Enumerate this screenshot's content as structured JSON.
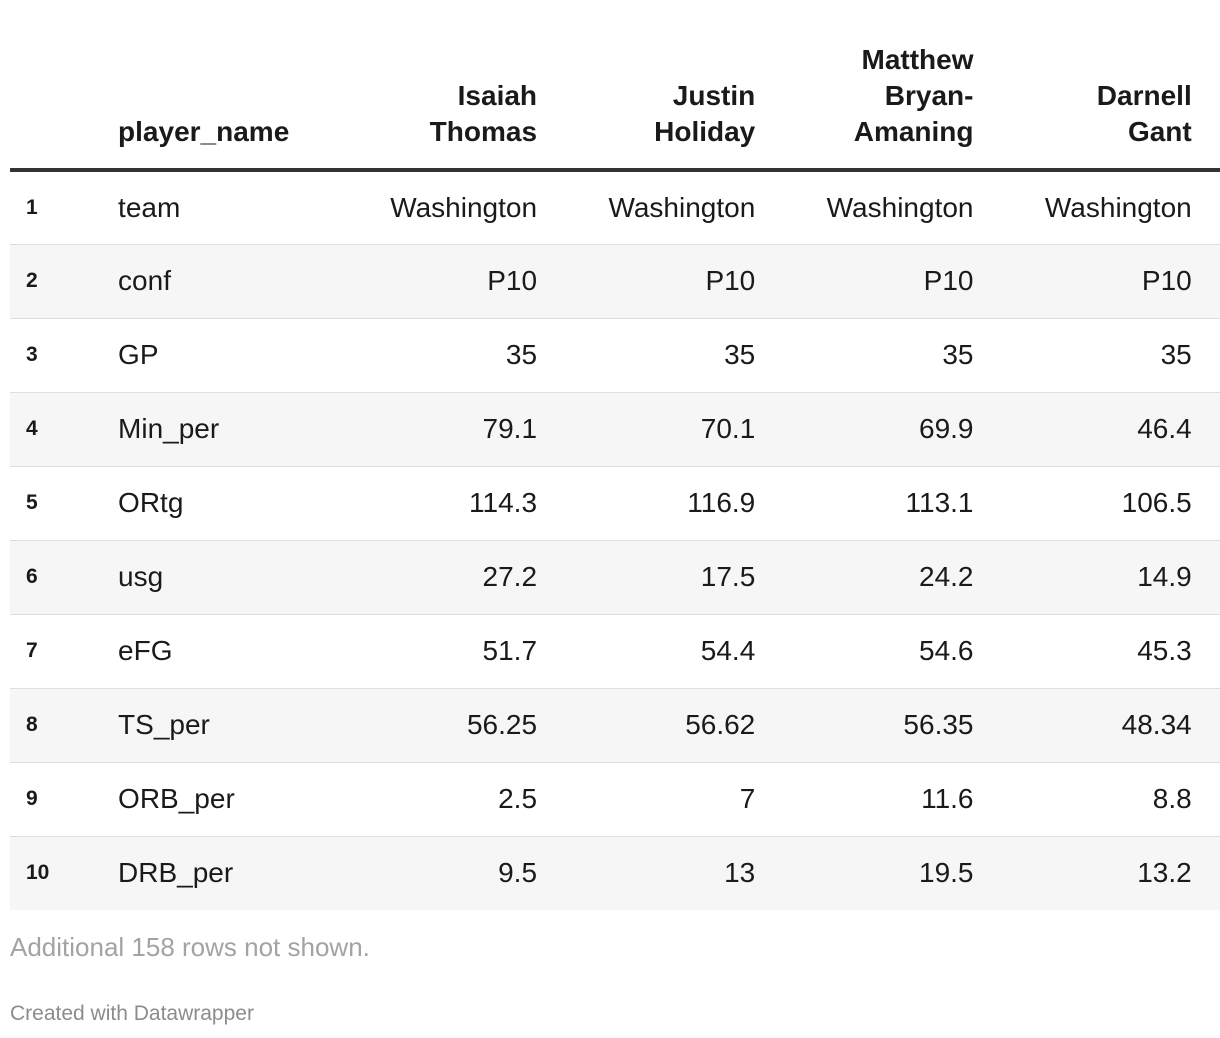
{
  "chart_data": {
    "type": "table",
    "columns": [
      "player_name",
      "Isaiah Thomas",
      "Justin Holiday",
      "Matthew Bryan-Amaning",
      "Darnell Gant",
      ""
    ],
    "rows": [
      {
        "index": "1",
        "label": "team",
        "values": [
          "Washington",
          "Washington",
          "Washington",
          "Washington",
          "W"
        ]
      },
      {
        "index": "2",
        "label": "conf",
        "values": [
          "P10",
          "P10",
          "P10",
          "P10",
          ""
        ]
      },
      {
        "index": "3",
        "label": "GP",
        "values": [
          "35",
          "35",
          "35",
          "35",
          ""
        ]
      },
      {
        "index": "4",
        "label": "Min_per",
        "values": [
          "79.1",
          "70.1",
          "69.9",
          "46.4",
          ""
        ]
      },
      {
        "index": "5",
        "label": "ORtg",
        "values": [
          "114.3",
          "116.9",
          "113.1",
          "106.5",
          ""
        ]
      },
      {
        "index": "6",
        "label": "usg",
        "values": [
          "27.2",
          "17.5",
          "24.2",
          "14.9",
          ""
        ]
      },
      {
        "index": "7",
        "label": "eFG",
        "values": [
          "51.7",
          "54.4",
          "54.6",
          "45.3",
          ""
        ]
      },
      {
        "index": "8",
        "label": "TS_per",
        "values": [
          "56.25",
          "56.62",
          "56.35",
          "48.34",
          ""
        ]
      },
      {
        "index": "9",
        "label": "ORB_per",
        "values": [
          "2.5",
          "7",
          "11.6",
          "8.8",
          ""
        ]
      },
      {
        "index": "10",
        "label": "DRB_per",
        "values": [
          "9.5",
          "13",
          "19.5",
          "13.2",
          ""
        ]
      }
    ]
  },
  "notes": "Additional 158 rows not shown.",
  "credit": "Created with Datawrapper",
  "colors": {
    "header_rule": "#333333",
    "stripe": "#f6f6f6",
    "notes": "#a3a3a3"
  }
}
